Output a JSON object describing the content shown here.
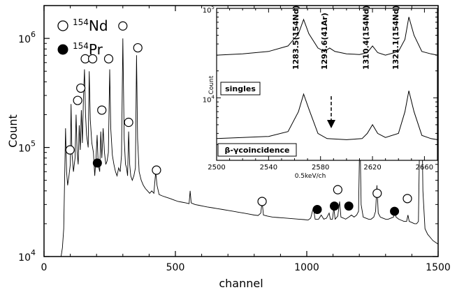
{
  "chart_data": [
    {
      "type": "line",
      "xlabel": "channel",
      "ylabel": "Count",
      "xlim": [
        0,
        1500
      ],
      "ylim": [
        10000,
        2000000
      ],
      "y_scale": "log",
      "x_ticks": [
        "0",
        "500",
        "1000",
        "1500"
      ],
      "y_ticks": [
        {
          "base": "10",
          "exp": "4",
          "value": 10000
        },
        {
          "base": "10",
          "exp": "5",
          "value": 100000
        },
        {
          "base": "10",
          "exp": "6",
          "value": 1000000
        }
      ],
      "legend": [
        {
          "label_pre": "154",
          "label_main": "Nd",
          "marker": "open-circle"
        },
        {
          "label_pre": "154",
          "label_main": "Pr",
          "marker": "filled-circle"
        }
      ],
      "series": [
        {
          "points": [
            [
              65,
              9000
            ],
            [
              70,
              12000
            ],
            [
              75,
              18000
            ],
            [
              82,
              150000
            ],
            [
              86,
              60000
            ],
            [
              90,
              45000
            ],
            [
              95,
              55000
            ],
            [
              100,
              70000
            ],
            [
              103,
              250000
            ],
            [
              106,
              90000
            ],
            [
              112,
              60000
            ],
            [
              118,
              80000
            ],
            [
              122,
              200000
            ],
            [
              126,
              90000
            ],
            [
              130,
              70000
            ],
            [
              134,
              160000
            ],
            [
              138,
              95000
            ],
            [
              142,
              220000
            ],
            [
              146,
              110000
            ],
            [
              150,
              280000
            ],
            [
              154,
              520000
            ],
            [
              158,
              200000
            ],
            [
              162,
              130000
            ],
            [
              168,
              100000
            ],
            [
              172,
              500000
            ],
            [
              176,
              180000
            ],
            [
              182,
              110000
            ],
            [
              188,
              90000
            ],
            [
              193,
              55000
            ],
            [
              198,
              80000
            ],
            [
              202,
              130000
            ],
            [
              206,
              70000
            ],
            [
              212,
              60000
            ],
            [
              216,
              140000
            ],
            [
              220,
              80000
            ],
            [
              225,
              150000
            ],
            [
              230,
              90000
            ],
            [
              235,
              70000
            ],
            [
              240,
              75000
            ],
            [
              245,
              90000
            ],
            [
              250,
              520000
            ],
            [
              254,
              150000
            ],
            [
              260,
              85000
            ],
            [
              266,
              70000
            ],
            [
              272,
              60000
            ],
            [
              278,
              55000
            ],
            [
              284,
              65000
            ],
            [
              290,
              60000
            ],
            [
              295,
              85000
            ],
            [
              300,
              1000000
            ],
            [
              305,
              120000
            ],
            [
              310,
              70000
            ],
            [
              314,
              65000
            ],
            [
              318,
              55000
            ],
            [
              322,
              140000
            ],
            [
              326,
              70000
            ],
            [
              330,
              55000
            ],
            [
              336,
              50000
            ],
            [
              342,
              55000
            ],
            [
              348,
              65000
            ],
            [
              352,
              700000
            ],
            [
              356,
              120000
            ],
            [
              362,
              60000
            ],
            [
              370,
              50000
            ],
            [
              378,
              45000
            ],
            [
              386,
              42000
            ],
            [
              394,
              40000
            ],
            [
              402,
              38000
            ],
            [
              410,
              40000
            ],
            [
              418,
              38000
            ],
            [
              425,
              60000
            ],
            [
              430,
              45000
            ],
            [
              438,
              37000
            ],
            [
              450,
              36000
            ],
            [
              465,
              35000
            ],
            [
              480,
              34000
            ],
            [
              495,
              33000
            ],
            [
              510,
              32000
            ],
            [
              525,
              31500
            ],
            [
              540,
              31000
            ],
            [
              552,
              30500
            ],
            [
              556,
              40000
            ],
            [
              560,
              31000
            ],
            [
              575,
              30000
            ],
            [
              590,
              29500
            ],
            [
              605,
              29000
            ],
            [
              620,
              28500
            ],
            [
              640,
              28000
            ],
            [
              660,
              27500
            ],
            [
              680,
              27000
            ],
            [
              700,
              26500
            ],
            [
              720,
              26000
            ],
            [
              740,
              25500
            ],
            [
              760,
              25000
            ],
            [
              780,
              24500
            ],
            [
              800,
              24000
            ],
            [
              815,
              23800
            ],
            [
              825,
              25000
            ],
            [
              830,
              32000
            ],
            [
              835,
              24000
            ],
            [
              850,
              23500
            ],
            [
              870,
              23000
            ],
            [
              890,
              22800
            ],
            [
              910,
              22600
            ],
            [
              930,
              22400
            ],
            [
              950,
              22200
            ],
            [
              970,
              22000
            ],
            [
              990,
              21800
            ],
            [
              1005,
              21600
            ],
            [
              1015,
              22500
            ],
            [
              1025,
              28000
            ],
            [
              1032,
              22000
            ],
            [
              1045,
              22000
            ],
            [
              1055,
              24000
            ],
            [
              1065,
              22000
            ],
            [
              1075,
              22500
            ],
            [
              1085,
              25000
            ],
            [
              1090,
              22000
            ],
            [
              1098,
              22000
            ],
            [
              1103,
              28000
            ],
            [
              1108,
              22000
            ],
            [
              1118,
              23500
            ],
            [
              1125,
              32000
            ],
            [
              1130,
              23000
            ],
            [
              1140,
              22500
            ],
            [
              1148,
              22000
            ],
            [
              1160,
              23000
            ],
            [
              1170,
              24000
            ],
            [
              1180,
              23000
            ],
            [
              1190,
              24000
            ],
            [
              1197,
              26000
            ],
            [
              1202,
              150000
            ],
            [
              1207,
              30000
            ],
            [
              1215,
              23000
            ],
            [
              1225,
              22500
            ],
            [
              1235,
              22000
            ],
            [
              1245,
              22000
            ],
            [
              1255,
              23000
            ],
            [
              1262,
              26000
            ],
            [
              1267,
              45000
            ],
            [
              1272,
              25000
            ],
            [
              1280,
              23000
            ],
            [
              1290,
              22500
            ],
            [
              1300,
              22000
            ],
            [
              1310,
              22000
            ],
            [
              1320,
              22500
            ],
            [
              1330,
              23000
            ],
            [
              1335,
              27000
            ],
            [
              1340,
              23000
            ],
            [
              1350,
              22000
            ],
            [
              1360,
              21500
            ],
            [
              1370,
              21000
            ],
            [
              1380,
              21000
            ],
            [
              1385,
              24000
            ],
            [
              1390,
              21000
            ],
            [
              1400,
              20500
            ],
            [
              1410,
              20000
            ],
            [
              1418,
              20000
            ],
            [
              1425,
              21000
            ],
            [
              1432,
              300000
            ],
            [
              1437,
              350000
            ],
            [
              1442,
              40000
            ],
            [
              1450,
              18000
            ],
            [
              1460,
              16000
            ],
            [
              1470,
              15000
            ],
            [
              1480,
              14000
            ],
            [
              1490,
              13500
            ],
            [
              1500,
              13000
            ]
          ]
        }
      ],
      "markers_open": [
        [
          99,
          95000
        ],
        [
          128,
          270000
        ],
        [
          140,
          350000
        ],
        [
          157,
          650000
        ],
        [
          185,
          650000
        ],
        [
          220,
          220000
        ],
        [
          246,
          650000
        ],
        [
          300,
          1300000
        ],
        [
          322,
          170000
        ],
        [
          357,
          820000
        ],
        [
          428,
          62000
        ],
        [
          830,
          32000
        ],
        [
          1118,
          41000
        ],
        [
          1202,
          200000
        ],
        [
          1268,
          38000
        ],
        [
          1383,
          34000
        ],
        [
          1438,
          600000
        ]
      ],
      "markers_filled": [
        [
          203,
          72000
        ],
        [
          1040,
          27000
        ],
        [
          1105,
          29000
        ],
        [
          1160,
          29000
        ],
        [
          1334,
          26000
        ]
      ]
    },
    {
      "type": "line",
      "xlabel": "0.5keV/ch",
      "ylabel": "Count",
      "xlim": [
        2500,
        2670
      ],
      "ylim": [
        2000,
        100000
      ],
      "y_scale": "log",
      "x_ticks": [
        "2500",
        "2540",
        "2580",
        "2620",
        "2660"
      ],
      "y_ticks": [
        {
          "base": "10",
          "exp": "4",
          "value": 10000
        },
        {
          "base": "10",
          "exp": "5",
          "value": 100000
        }
      ],
      "panel_labels": [
        "singles",
        "β-γcoincidence"
      ],
      "annotations": [
        "1283.5(154Nd)",
        "1293.6(41Ar)",
        "1310.4(154Nd)",
        "1321.1(154Nd)"
      ],
      "series": [
        {
          "name": "singles",
          "points": [
            [
              2500,
              30000
            ],
            [
              2520,
              31000
            ],
            [
              2540,
              33000
            ],
            [
              2555,
              38000
            ],
            [
              2563,
              52000
            ],
            [
              2567,
              75000
            ],
            [
              2571,
              52000
            ],
            [
              2578,
              36000
            ],
            [
              2583,
              33000
            ],
            [
              2587,
              36000
            ],
            [
              2591,
              33000
            ],
            [
              2600,
              31000
            ],
            [
              2610,
              30500
            ],
            [
              2616,
              32000
            ],
            [
              2620,
              38000
            ],
            [
              2624,
              32000
            ],
            [
              2630,
              30000
            ],
            [
              2640,
              33000
            ],
            [
              2645,
              45000
            ],
            [
              2648,
              80000
            ],
            [
              2652,
              50000
            ],
            [
              2658,
              33000
            ],
            [
              2665,
              31000
            ],
            [
              2670,
              30000
            ]
          ]
        },
        {
          "name": "β-γcoincidence",
          "points": [
            [
              2500,
              3500
            ],
            [
              2520,
              3600
            ],
            [
              2540,
              3700
            ],
            [
              2555,
              4200
            ],
            [
              2563,
              7000
            ],
            [
              2567,
              11000
            ],
            [
              2571,
              7500
            ],
            [
              2578,
              4000
            ],
            [
              2585,
              3500
            ],
            [
              2600,
              3400
            ],
            [
              2612,
              3500
            ],
            [
              2616,
              4000
            ],
            [
              2620,
              5000
            ],
            [
              2624,
              4000
            ],
            [
              2630,
              3600
            ],
            [
              2640,
              4000
            ],
            [
              2645,
              7000
            ],
            [
              2648,
              12000
            ],
            [
              2652,
              7000
            ],
            [
              2658,
              3800
            ],
            [
              2665,
              3500
            ],
            [
              2670,
              3400
            ]
          ]
        }
      ]
    }
  ]
}
